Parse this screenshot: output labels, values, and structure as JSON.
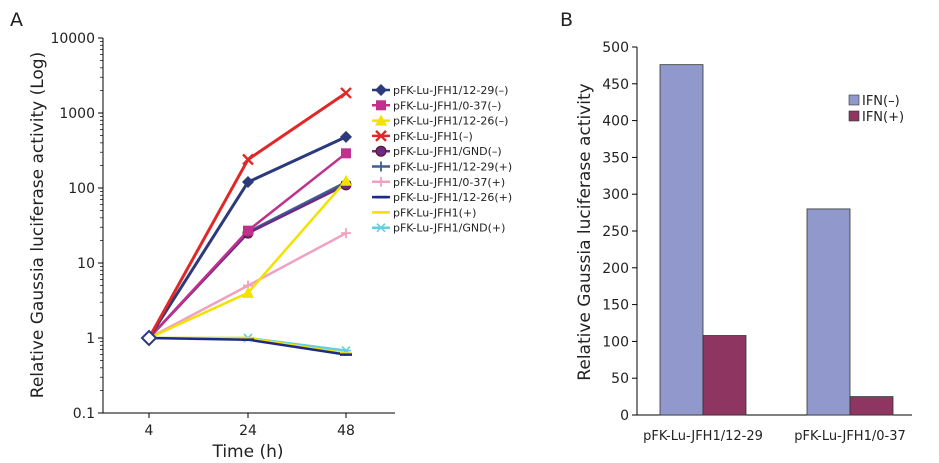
{
  "panels": [
    {
      "letter": "A",
      "chart_data": {
        "type": "line",
        "title": "",
        "xlabel": "Time (h)",
        "ylabel": "Relative Gaussia luciferase  activity (Log)",
        "x_scale": "categorical",
        "y_scale": "log",
        "categories": [
          "4",
          "24",
          "48"
        ],
        "yticks": [
          "0.1",
          "1",
          "10",
          "100",
          "1000",
          "10000"
        ],
        "ylim": [
          0.1,
          10000
        ],
        "legend_position": "right",
        "series": [
          {
            "name": "pFK-Lu-JFH1/12-29(–)",
            "color": "#2b3a7a",
            "marker": "diamond",
            "values": [
              1,
              120,
              480
            ]
          },
          {
            "name": "pFK-Lu-JFH1/0-37(–)",
            "color": "#c0308c",
            "marker": "square",
            "values": [
              1,
              27,
              290
            ]
          },
          {
            "name": "pFK-Lu-JFH1/12-26(–)",
            "color": "#f2e200",
            "marker": "triangle",
            "values": [
              1,
              4,
              125
            ]
          },
          {
            "name": "pFK-Lu-JFH1(–)",
            "color": "#e02828",
            "marker": "x",
            "values": [
              1,
              240,
              1850
            ]
          },
          {
            "name": "pFK-Lu-JFH1/GND(–)",
            "color": "#6a2a86",
            "marker": "circle",
            "values": [
              1,
              25,
              110
            ]
          },
          {
            "name": "pFK-Lu-JFH1/12-29(+)",
            "color": "#3a6090",
            "marker": "plus",
            "values": [
              1,
              26,
              120
            ]
          },
          {
            "name": "pFK-Lu-JFH1/0-37(+)",
            "color": "#f0a0c0",
            "marker": "plus",
            "values": [
              1,
              5,
              25
            ]
          },
          {
            "name": "pFK-Lu-JFH1/12-26(+)",
            "color": "#1e2a8a",
            "marker": "dash",
            "values": [
              1,
              0.95,
              0.6
            ]
          },
          {
            "name": "pFK-Lu-JFH1(+)",
            "color": "#f5e000",
            "marker": "dash",
            "values": [
              1,
              1.0,
              0.62
            ]
          },
          {
            "name": "pFK-Lu-JFH1/GND(+)",
            "color": "#60d0e0",
            "marker": "star",
            "values": [
              1,
              1.0,
              0.68
            ]
          }
        ]
      }
    },
    {
      "letter": "B",
      "chart_data": {
        "type": "bar",
        "title": "",
        "xlabel": "",
        "ylabel": "Relative Gaussia luciferase  activity",
        "categories": [
          "pFK-Lu-JFH1/12-29",
          "pFK-Lu-JFH1/0-37"
        ],
        "ylim": [
          0,
          500
        ],
        "yticks": [
          "0",
          "50",
          "100",
          "150",
          "200",
          "250",
          "300",
          "350",
          "400",
          "450",
          "500"
        ],
        "legend_position": "top-right",
        "series": [
          {
            "name": "IFN(–)",
            "color": "#9199cc",
            "values": [
              476,
              280
            ]
          },
          {
            "name": "IFN(+)",
            "color": "#8e3562",
            "values": [
              108,
              25
            ]
          }
        ]
      }
    }
  ]
}
